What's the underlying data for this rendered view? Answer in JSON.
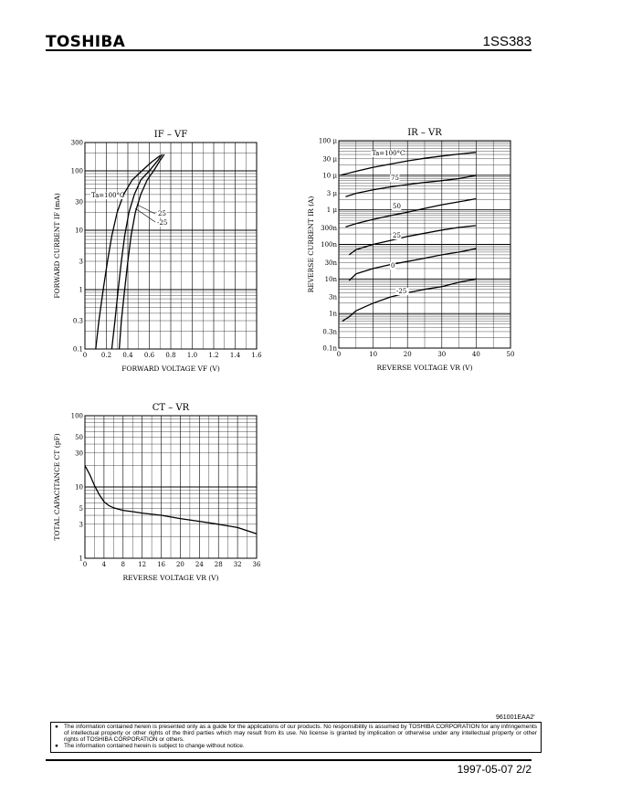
{
  "header": {
    "logo": "TOSHIBA",
    "part_number": "1SS383"
  },
  "chart_data": [
    {
      "type": "line",
      "title": "IF – VF",
      "xlabel": "FORWARD VOLTAGE VF (V)",
      "ylabel": "FORWARD CURRENT IF (mA)",
      "x_scale": "linear",
      "y_scale": "log",
      "xlim": [
        0,
        1.6
      ],
      "ylim": [
        0.1,
        300
      ],
      "x_ticks": [
        0,
        0.2,
        0.4,
        0.6,
        0.8,
        1.0,
        1.2,
        1.4,
        1.6
      ],
      "x_tick_labels": [
        "0",
        "0.2",
        "0.4",
        "0.6",
        "0.8",
        "1.0",
        "1.2",
        "1.4",
        "1.6"
      ],
      "y_ticks": [
        0.1,
        0.3,
        1,
        3,
        10,
        30,
        100,
        300
      ],
      "y_tick_labels": [
        "0.1",
        "0.3",
        "1",
        "3",
        "10",
        "30",
        "100",
        "300"
      ],
      "grid": true,
      "series": [
        {
          "name": "Ta=100°C",
          "x": [
            0.1,
            0.13,
            0.17,
            0.21,
            0.25,
            0.3,
            0.36,
            0.44,
            0.53,
            0.62,
            0.7
          ],
          "y": [
            0.1,
            0.3,
            1,
            3,
            8,
            20,
            40,
            70,
            100,
            140,
            180
          ]
        },
        {
          "name": "25",
          "x": [
            0.25,
            0.28,
            0.31,
            0.34,
            0.37,
            0.41,
            0.46,
            0.52,
            0.6,
            0.68,
            0.72
          ],
          "y": [
            0.1,
            0.3,
            1,
            3,
            8,
            20,
            40,
            70,
            100,
            150,
            190
          ]
        },
        {
          "name": "-25",
          "x": [
            0.32,
            0.34,
            0.37,
            0.4,
            0.43,
            0.47,
            0.52,
            0.58,
            0.64,
            0.7,
            0.74
          ],
          "y": [
            0.1,
            0.3,
            1,
            3,
            8,
            20,
            40,
            70,
            100,
            150,
            190
          ]
        }
      ],
      "annotations": [
        "Ta=100°C",
        "25",
        "-25"
      ]
    },
    {
      "type": "line",
      "title": "IR – VR",
      "xlabel": "REVERSE VOLTAGE VR (V)",
      "ylabel": "REVERSE CURRENT IR (A)",
      "x_scale": "linear",
      "y_scale": "log",
      "xlim": [
        0,
        50
      ],
      "ylim": [
        1e-10,
        0.0001
      ],
      "x_ticks": [
        0,
        10,
        20,
        30,
        40,
        50
      ],
      "x_tick_labels": [
        "0",
        "10",
        "20",
        "30",
        "40",
        "50"
      ],
      "y_ticks": [
        1e-10,
        3e-10,
        1e-09,
        3e-09,
        1e-08,
        3e-08,
        1e-07,
        3e-07,
        1e-06,
        3e-06,
        1e-05,
        3e-05,
        0.0001
      ],
      "y_tick_labels": [
        "0.1n",
        "0.3n",
        "1n",
        "3n",
        "10n",
        "30n",
        "100n",
        "300n",
        "1 μ",
        "3 μ",
        "10 μ",
        "30 μ",
        "100 μ"
      ],
      "grid": true,
      "series": [
        {
          "name": "Ta=100°C",
          "x": [
            0.5,
            5,
            10,
            15,
            20,
            25,
            30,
            35,
            40
          ],
          "y": [
            1e-05,
            1.3e-05,
            1.7e-05,
            2.1e-05,
            2.6e-05,
            3.1e-05,
            3.6e-05,
            4.1e-05,
            4.6e-05
          ]
        },
        {
          "name": "75",
          "x": [
            2,
            5,
            10,
            15,
            20,
            25,
            30,
            35,
            40
          ],
          "y": [
            2.4e-06,
            3e-06,
            3.8e-06,
            4.6e-06,
            5.4e-06,
            6.2e-06,
            7e-06,
            8e-06,
            1e-05
          ]
        },
        {
          "name": "50",
          "x": [
            2,
            5,
            10,
            15,
            20,
            25,
            30,
            35,
            40
          ],
          "y": [
            3.2e-07,
            4e-07,
            5.3e-07,
            6.8e-07,
            8.5e-07,
            1.1e-06,
            1.4e-06,
            1.7e-06,
            2.1e-06
          ]
        },
        {
          "name": "25",
          "x": [
            3,
            5,
            10,
            15,
            20,
            25,
            30,
            35,
            40
          ],
          "y": [
            5e-08,
            7e-08,
            1e-07,
            1.3e-07,
            1.7e-07,
            2.1e-07,
            2.6e-07,
            3.1e-07,
            3.5e-07
          ]
        },
        {
          "name": "0",
          "x": [
            3,
            5,
            10,
            15,
            20,
            25,
            30,
            35,
            40
          ],
          "y": [
            9e-09,
            1.4e-08,
            2e-08,
            2.6e-08,
            3.2e-08,
            4e-08,
            5e-08,
            6e-08,
            7.5e-08
          ]
        },
        {
          "name": "-25",
          "x": [
            1,
            3,
            5,
            10,
            15,
            20,
            25,
            30,
            35,
            40
          ],
          "y": [
            6e-10,
            8e-10,
            1.2e-09,
            2e-09,
            3e-09,
            4e-09,
            5e-09,
            6e-09,
            8e-09,
            1e-08
          ]
        }
      ],
      "annotations": [
        "Ta=100°C",
        "75",
        "50",
        "25",
        "0",
        "-25"
      ]
    },
    {
      "type": "line",
      "title": "CT – VR",
      "xlabel": "REVERSE VOLTAGE VR (V)",
      "ylabel": "TOTAL CAPACITANCE CT (pF)",
      "x_scale": "linear",
      "y_scale": "log",
      "xlim": [
        0,
        36
      ],
      "ylim": [
        1,
        100
      ],
      "x_ticks": [
        0,
        4,
        8,
        12,
        16,
        20,
        24,
        28,
        32,
        36
      ],
      "x_tick_labels": [
        "0",
        "4",
        "8",
        "12",
        "16",
        "20",
        "24",
        "28",
        "32",
        "36"
      ],
      "y_ticks": [
        1,
        3,
        5,
        10,
        30,
        50,
        100
      ],
      "y_tick_labels": [
        "1",
        "3",
        "5",
        "10",
        "30",
        "50",
        "100"
      ],
      "grid": true,
      "series": [
        {
          "name": "",
          "x": [
            0,
            1,
            2,
            3,
            4,
            5,
            6,
            8,
            10,
            12,
            16,
            20,
            24,
            28,
            32,
            36
          ],
          "y": [
            20,
            15,
            10.5,
            7.8,
            6.2,
            5.5,
            5.1,
            4.7,
            4.5,
            4.3,
            4.0,
            3.6,
            3.3,
            3.0,
            2.7,
            2.2
          ]
        }
      ]
    }
  ],
  "footer": {
    "doc_code": "961001EAA2'",
    "bullet1": "The information contained herein is presented only as a guide for the applications of our products. No responsibility is assumed by TOSHIBA CORPORATION for any infringements of intellectual property or other rights of the third parties which may result from its use. No license is granted by implication or otherwise under any intellectual property or other rights of TOSHIBA CORPORATION or others.",
    "bullet2": "The information contained herein is subject to change without notice.",
    "date_page": "1997-05-07   2/2"
  }
}
